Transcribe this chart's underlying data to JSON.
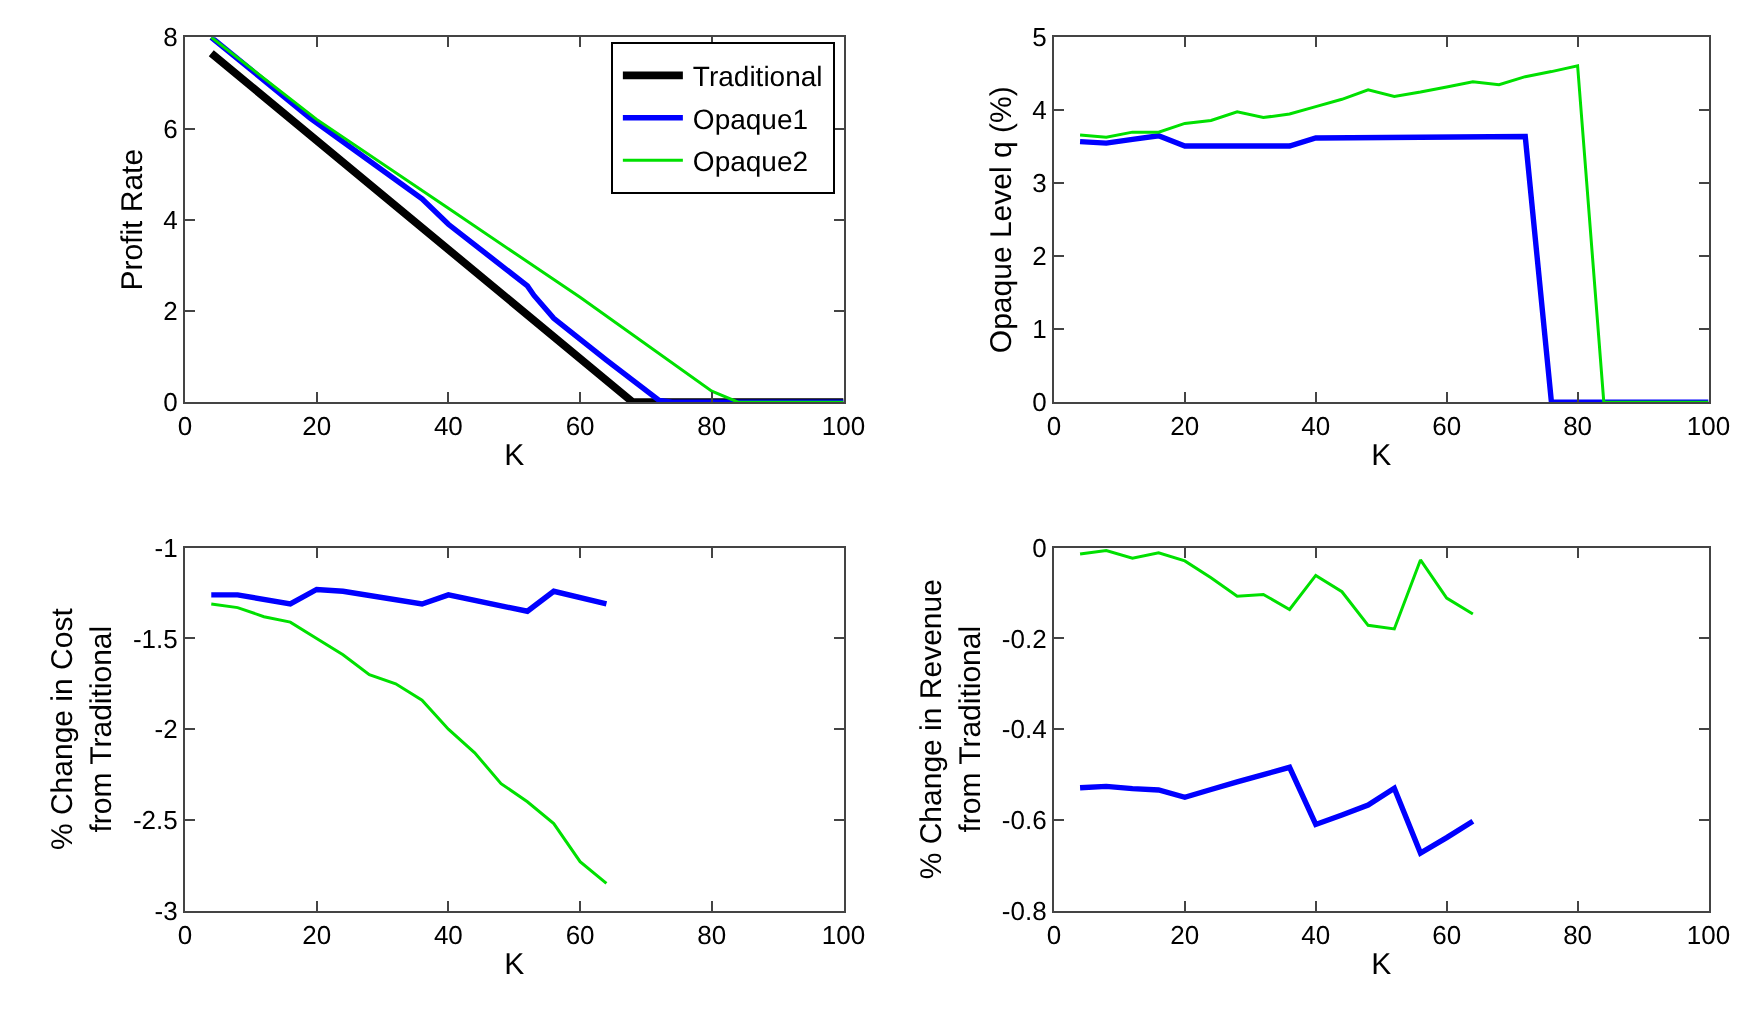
{
  "chart_data": [
    {
      "type": "line",
      "xlabel": "K",
      "ylabel": "Profit Rate",
      "xlim": [
        0,
        100
      ],
      "xticks": [
        0,
        20,
        40,
        60,
        80,
        100
      ],
      "ylim": [
        0,
        8
      ],
      "yticks": [
        0,
        2,
        4,
        6,
        8
      ],
      "legend": "top right",
      "series": [
        {
          "name": "Traditional",
          "color": "#000000",
          "x": [
            4,
            68,
            100
          ],
          "values": [
            7.65,
            0,
            0
          ]
        },
        {
          "name": "Opaque1",
          "color": "#0000ff",
          "x": [
            4,
            19,
            36,
            40,
            52,
            53,
            56,
            64,
            72,
            74,
            100
          ],
          "values": [
            8.0,
            6.23,
            4.46,
            3.9,
            2.55,
            2.34,
            1.84,
            0.92,
            0.04,
            0,
            0
          ]
        },
        {
          "name": "Opaque2",
          "color": "#00e000",
          "x": [
            4,
            20,
            40,
            60,
            80,
            84,
            100
          ],
          "values": [
            8.0,
            6.2,
            4.25,
            2.3,
            0.24,
            0,
            0
          ]
        }
      ]
    },
    {
      "type": "line",
      "xlabel": "K",
      "ylabel": "Opaque Level q (%)",
      "xlim": [
        0,
        100
      ],
      "xticks": [
        0,
        20,
        40,
        60,
        80,
        100
      ],
      "ylim": [
        0,
        5
      ],
      "yticks": [
        0,
        1,
        2,
        3,
        4,
        5
      ],
      "series": [
        {
          "color": "#0000ff",
          "x": [
            4,
            8,
            12,
            16,
            20,
            36,
            40,
            72,
            76,
            100
          ],
          "values": [
            3.57,
            3.55,
            3.6,
            3.65,
            3.51,
            3.51,
            3.62,
            3.64,
            0,
            0
          ]
        },
        {
          "color": "#00e000",
          "x": [
            4,
            8,
            12,
            16,
            20,
            24,
            28,
            32,
            36,
            40,
            44,
            48,
            52,
            56,
            60,
            64,
            68,
            72,
            76,
            80,
            84,
            100
          ],
          "values": [
            3.66,
            3.63,
            3.7,
            3.7,
            3.82,
            3.86,
            3.98,
            3.9,
            3.95,
            4.05,
            4.15,
            4.28,
            4.19,
            4.25,
            4.32,
            4.39,
            4.35,
            4.46,
            4.53,
            4.61,
            0,
            0
          ]
        }
      ]
    },
    {
      "type": "line",
      "xlabel": "K",
      "ylabel": "% Change in Cost\nfrom Traditional",
      "xlim": [
        0,
        100
      ],
      "xticks": [
        0,
        20,
        40,
        60,
        80,
        100
      ],
      "ylim": [
        -3,
        -1
      ],
      "yticks": [
        -3,
        -2.5,
        -2,
        -1.5,
        -1
      ],
      "series": [
        {
          "color": "#0000ff",
          "x": [
            4,
            8,
            16,
            20,
            24,
            36,
            40,
            52,
            56,
            64
          ],
          "values": [
            -1.26,
            -1.26,
            -1.31,
            -1.23,
            -1.24,
            -1.31,
            -1.26,
            -1.35,
            -1.24,
            -1.31
          ]
        },
        {
          "color": "#00e000",
          "x": [
            4,
            8,
            12,
            16,
            20,
            24,
            28,
            32,
            36,
            40,
            44,
            48,
            52,
            56,
            60,
            64
          ],
          "values": [
            -1.31,
            -1.33,
            -1.38,
            -1.41,
            -1.5,
            -1.59,
            -1.7,
            -1.75,
            -1.84,
            -2.0,
            -2.13,
            -2.3,
            -2.4,
            -2.52,
            -2.73,
            -2.85
          ]
        }
      ]
    },
    {
      "type": "line",
      "xlabel": "K",
      "ylabel": "% Change in Revenue\nfrom Traditional",
      "xlim": [
        0,
        100
      ],
      "xticks": [
        0,
        20,
        40,
        60,
        80,
        100
      ],
      "ylim": [
        -0.8,
        0
      ],
      "yticks": [
        -0.8,
        -0.6,
        -0.4,
        -0.2,
        0
      ],
      "series": [
        {
          "color": "#0000ff",
          "x": [
            4,
            8,
            12,
            16,
            20,
            24,
            28,
            32,
            36,
            40,
            44,
            48,
            52,
            56,
            60,
            64
          ],
          "values": [
            -0.529,
            -0.526,
            -0.531,
            -0.534,
            -0.55,
            -0.533,
            -0.516,
            -0.5,
            -0.484,
            -0.61,
            -0.589,
            -0.567,
            -0.53,
            -0.673,
            -0.639,
            -0.603
          ]
        },
        {
          "color": "#00e000",
          "x": [
            4,
            8,
            12,
            16,
            20,
            24,
            28,
            32,
            36,
            40,
            44,
            48,
            52,
            56,
            60,
            64
          ],
          "values": [
            -0.014,
            -0.006,
            -0.023,
            -0.011,
            -0.029,
            -0.066,
            -0.107,
            -0.103,
            -0.136,
            -0.061,
            -0.097,
            -0.171,
            -0.179,
            -0.027,
            -0.111,
            -0.146
          ]
        }
      ]
    }
  ]
}
